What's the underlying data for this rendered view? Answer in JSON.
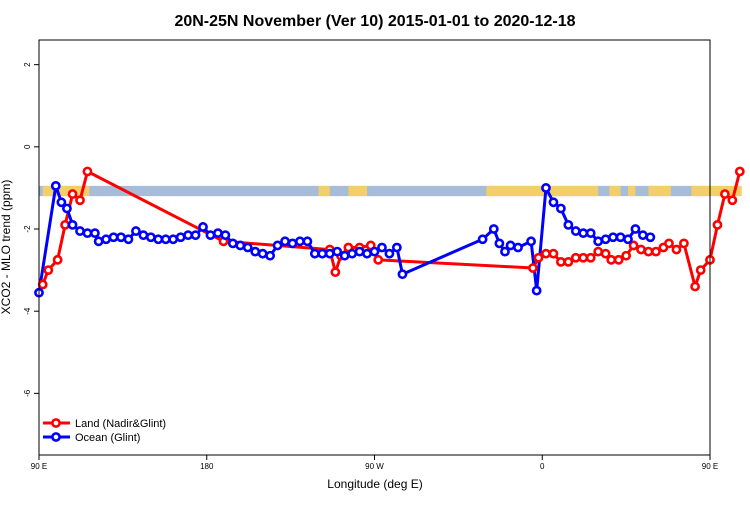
{
  "chart_data": {
    "type": "line",
    "title": "20N-25N November (Ver 10)   2015-01-01 to 2020-12-18",
    "xlabel": "Longitude (deg E)",
    "ylabel": "XCO2 - MLO trend (ppm)",
    "xlim": [
      90,
      450
    ],
    "ylim": [
      -7.5,
      2.6
    ],
    "x_ticks": [
      {
        "value": 90,
        "label": "90 E"
      },
      {
        "value": 180,
        "label": "180"
      },
      {
        "value": 270,
        "label": "90 W"
      },
      {
        "value": 360,
        "label": "0"
      },
      {
        "value": 450,
        "label": "90 E"
      },
      {
        "value": 540,
        "label": "180"
      }
    ],
    "y_ticks": [
      {
        "value": 2,
        "label": "2"
      },
      {
        "value": 0,
        "label": "0"
      },
      {
        "value": -2,
        "label": "-2"
      },
      {
        "value": -4,
        "label": "-4"
      },
      {
        "value": -6,
        "label": "-6"
      }
    ],
    "map_band": {
      "y_top": -0.95,
      "y_bottom": -1.2,
      "ocean_color": "#a7bcd9",
      "land_color": "#f3cf6a"
    },
    "legend": {
      "position": "bottom-left"
    },
    "series": [
      {
        "name": "Land (Nadir&Glint)",
        "color": "#ff0000",
        "points": [
          [
            92,
            -3.35
          ],
          [
            95,
            -3.0
          ],
          [
            100,
            -2.75
          ],
          [
            104,
            -1.9
          ],
          [
            108,
            -1.15
          ],
          [
            112,
            -1.3
          ],
          [
            116,
            -0.6
          ],
          [
            189,
            -2.3
          ],
          [
            246,
            -2.5
          ],
          [
            249,
            -3.05
          ],
          [
            252,
            -2.65
          ],
          [
            256,
            -2.45
          ],
          [
            262,
            -2.45
          ],
          [
            268,
            -2.4
          ],
          [
            272,
            -2.75
          ],
          [
            355,
            -2.95
          ],
          [
            358,
            -2.7
          ],
          [
            362,
            -2.6
          ],
          [
            366,
            -2.6
          ],
          [
            370,
            -2.8
          ],
          [
            374,
            -2.8
          ],
          [
            378,
            -2.7
          ],
          [
            382,
            -2.7
          ],
          [
            386,
            -2.7
          ],
          [
            390,
            -2.55
          ],
          [
            394,
            -2.6
          ],
          [
            397,
            -2.75
          ],
          [
            401,
            -2.75
          ],
          [
            405,
            -2.65
          ],
          [
            409,
            -2.4
          ],
          [
            413,
            -2.5
          ],
          [
            417,
            -2.55
          ],
          [
            421,
            -2.55
          ],
          [
            425,
            -2.45
          ],
          [
            428,
            -2.35
          ],
          [
            432,
            -2.5
          ],
          [
            436,
            -2.35
          ],
          [
            442,
            -3.4
          ],
          [
            445,
            -3.0
          ],
          [
            450,
            -2.75
          ],
          [
            454,
            -1.9
          ],
          [
            458,
            -1.15
          ],
          [
            462,
            -1.3
          ],
          [
            466,
            -0.6
          ]
        ]
      },
      {
        "name": "Ocean (Glint)",
        "color": "#0000ff",
        "points": [
          [
            90,
            -3.55
          ],
          [
            99,
            -0.95
          ],
          [
            102,
            -1.35
          ],
          [
            105,
            -1.5
          ],
          [
            108,
            -1.9
          ],
          [
            112,
            -2.05
          ],
          [
            116,
            -2.1
          ],
          [
            120,
            -2.1
          ],
          [
            122,
            -2.3
          ],
          [
            126,
            -2.25
          ],
          [
            130,
            -2.2
          ],
          [
            134,
            -2.2
          ],
          [
            138,
            -2.25
          ],
          [
            142,
            -2.05
          ],
          [
            146,
            -2.15
          ],
          [
            150,
            -2.2
          ],
          [
            154,
            -2.25
          ],
          [
            158,
            -2.25
          ],
          [
            162,
            -2.25
          ],
          [
            166,
            -2.2
          ],
          [
            170,
            -2.15
          ],
          [
            174,
            -2.15
          ],
          [
            178,
            -1.95
          ],
          [
            182,
            -2.15
          ],
          [
            186,
            -2.1
          ],
          [
            190,
            -2.15
          ],
          [
            194,
            -2.35
          ],
          [
            198,
            -2.4
          ],
          [
            202,
            -2.45
          ],
          [
            206,
            -2.55
          ],
          [
            210,
            -2.6
          ],
          [
            214,
            -2.65
          ],
          [
            218,
            -2.4
          ],
          [
            222,
            -2.3
          ],
          [
            226,
            -2.35
          ],
          [
            230,
            -2.3
          ],
          [
            234,
            -2.3
          ],
          [
            238,
            -2.6
          ],
          [
            242,
            -2.6
          ],
          [
            246,
            -2.6
          ],
          [
            250,
            -2.55
          ],
          [
            254,
            -2.65
          ],
          [
            258,
            -2.6
          ],
          [
            262,
            -2.55
          ],
          [
            266,
            -2.6
          ],
          [
            270,
            -2.55
          ],
          [
            274,
            -2.45
          ],
          [
            278,
            -2.6
          ],
          [
            282,
            -2.45
          ],
          [
            285,
            -3.1
          ],
          [
            328,
            -2.25
          ],
          [
            334,
            -2.0
          ],
          [
            337,
            -2.35
          ],
          [
            340,
            -2.55
          ],
          [
            343,
            -2.4
          ],
          [
            347,
            -2.45
          ],
          [
            354,
            -2.3
          ],
          [
            357,
            -3.5
          ],
          [
            362,
            -1.0
          ],
          [
            366,
            -1.35
          ],
          [
            370,
            -1.5
          ],
          [
            374,
            -1.9
          ],
          [
            378,
            -2.05
          ],
          [
            382,
            -2.1
          ],
          [
            386,
            -2.1
          ],
          [
            390,
            -2.3
          ],
          [
            394,
            -2.25
          ],
          [
            398,
            -2.2
          ],
          [
            402,
            -2.2
          ],
          [
            406,
            -2.25
          ],
          [
            410,
            -2.0
          ],
          [
            414,
            -2.15
          ],
          [
            418,
            -2.2
          ]
        ]
      }
    ]
  }
}
